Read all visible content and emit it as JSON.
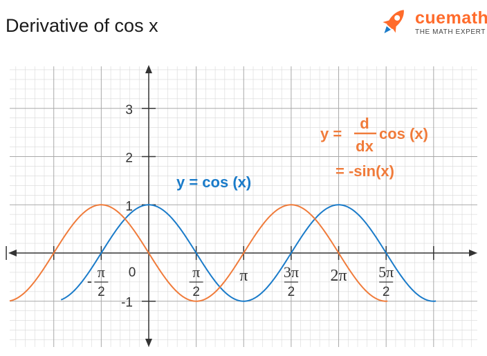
{
  "title": "Derivative of cos x",
  "brand": {
    "name": "cuemath",
    "tagline": "THE MATH EXPERT"
  },
  "colors": {
    "cos": "#1a7bc9",
    "neg_sin": "#f07b3a",
    "axis": "#333333",
    "grid_minor": "#d8d8d8",
    "grid_major": "#a8a8a8"
  },
  "chart_data": {
    "type": "line",
    "x_ticks": [
      {
        "value": -1.5708,
        "sign": "-",
        "num": "π",
        "den": "2"
      },
      {
        "value": 1.5708,
        "sign": "",
        "num": "π",
        "den": "2"
      },
      {
        "value": 3.1416,
        "sign": "",
        "num": "π",
        "den": ""
      },
      {
        "value": 4.7124,
        "sign": "",
        "num": "3π",
        "den": "2"
      },
      {
        "value": 6.2832,
        "sign": "",
        "num": "2π",
        "den": ""
      },
      {
        "value": 7.854,
        "sign": "",
        "num": "5π",
        "den": "2"
      }
    ],
    "origin_label": "0",
    "y_ticks": [
      {
        "value": 3,
        "label": "3"
      },
      {
        "value": 2,
        "label": "2"
      },
      {
        "value": 1,
        "label": "1"
      },
      {
        "value": -1,
        "label": "-1"
      }
    ],
    "xlim": [
      -4.6,
      11.0
    ],
    "ylim": [
      -1.95,
      4.05
    ],
    "series": [
      {
        "key": "cos",
        "function": "cos(x)",
        "domain": [
          -2.9,
          9.5
        ]
      },
      {
        "key": "neg_sin",
        "function": "-sin(x)",
        "domain": [
          -4.6,
          7.9
        ]
      }
    ],
    "annotations": {
      "cos_label": "y = cos (x)",
      "deriv_y": "y =",
      "deriv_num": "d",
      "deriv_den": "dx",
      "deriv_rest": "cos (x)",
      "deriv_result": "= -sin(x)"
    }
  }
}
